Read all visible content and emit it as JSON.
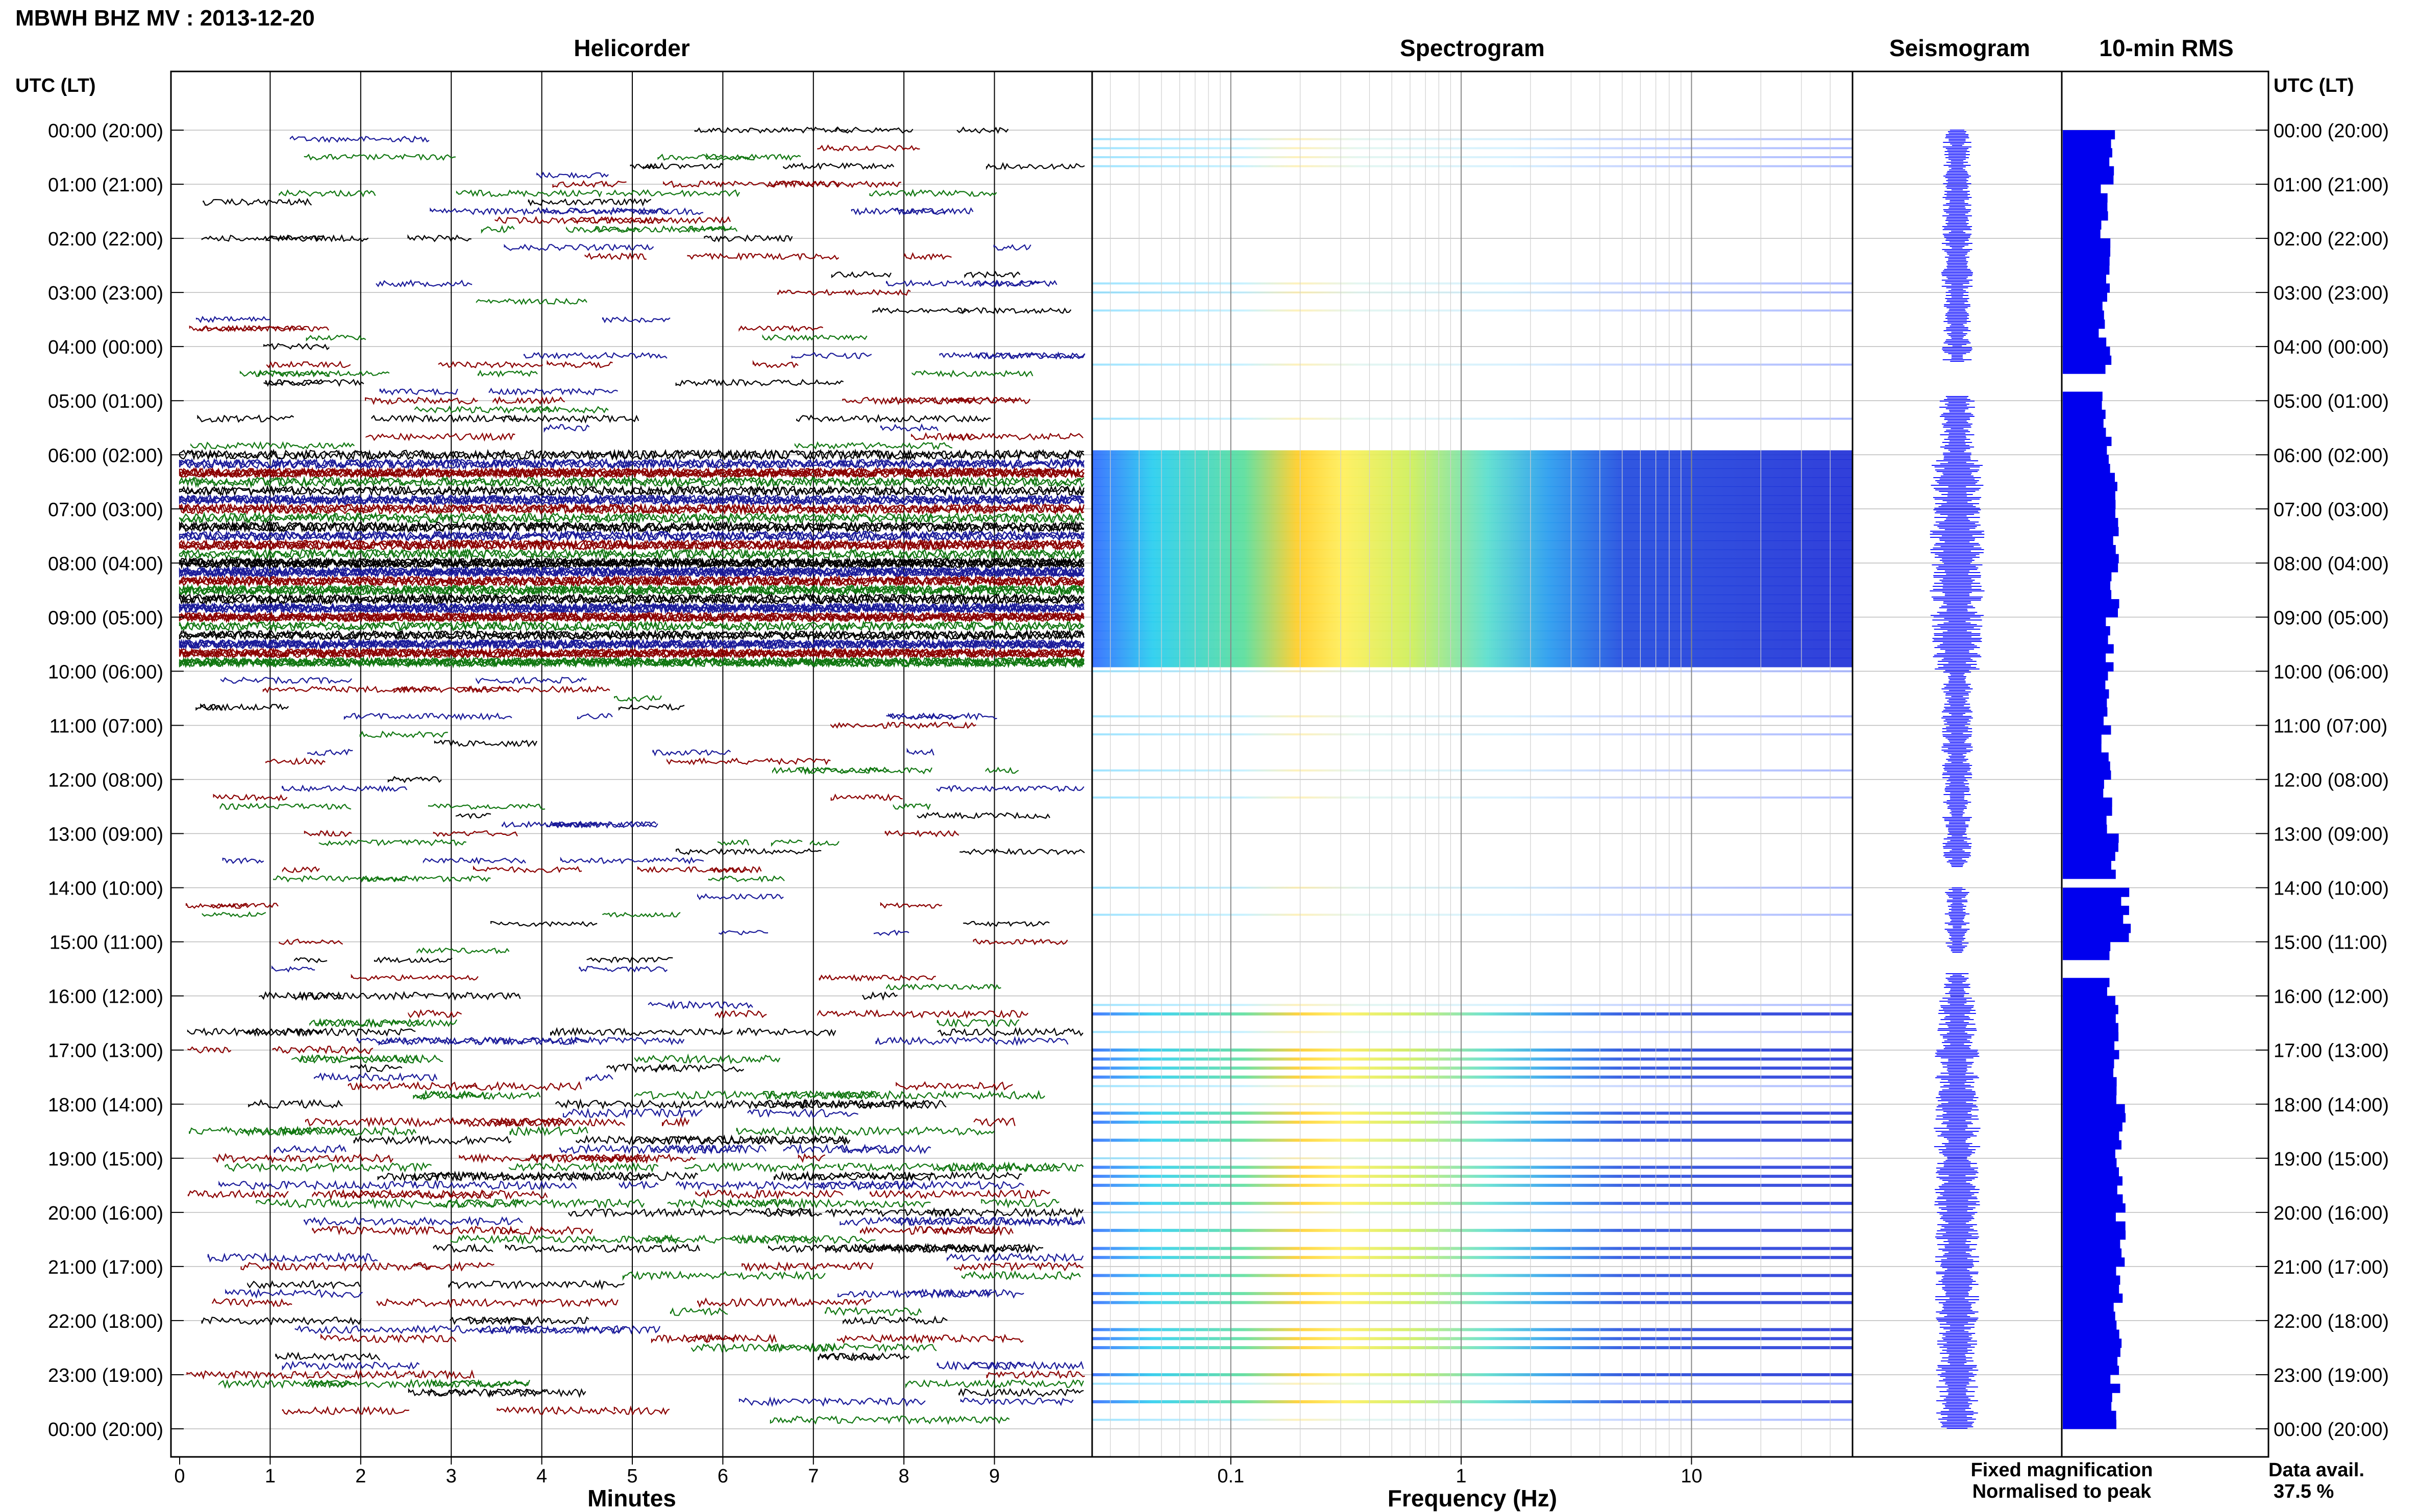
{
  "title": "MBWH BHZ MV : 2013-12-20",
  "panels": {
    "helicorder": "Helicorder",
    "spectrogram": "Spectrogram",
    "seismogram": "Seismogram",
    "rms": "10-min RMS"
  },
  "axis": {
    "time_header": "UTC (LT)",
    "minutes_label": "Minutes",
    "frequency_label": "Frequency (Hz)",
    "minutes_ticks": [
      "0",
      "1",
      "2",
      "3",
      "4",
      "5",
      "6",
      "7",
      "8",
      "9"
    ],
    "frequency_ticks": [
      "0.1",
      "1",
      "10"
    ]
  },
  "hour_labels": [
    "00:00 (20:00)",
    "01:00 (21:00)",
    "02:00 (22:00)",
    "03:00 (23:00)",
    "04:00 (00:00)",
    "05:00 (01:00)",
    "06:00 (02:00)",
    "07:00 (03:00)",
    "08:00 (04:00)",
    "09:00 (05:00)",
    "10:00 (06:00)",
    "11:00 (07:00)",
    "12:00 (08:00)",
    "13:00 (09:00)",
    "14:00 (10:00)",
    "15:00 (11:00)",
    "16:00 (12:00)",
    "17:00 (13:00)",
    "18:00 (14:00)",
    "19:00 (15:00)",
    "20:00 (16:00)",
    "21:00 (17:00)",
    "22:00 (18:00)",
    "23:00 (19:00)",
    "00:00 (20:00)"
  ],
  "legend": {
    "fixed": "Fixed magnification",
    "normalised": "Normalised to peak",
    "fixed_color": "#1a1aff",
    "normalised_color": "#ff1a1a"
  },
  "data_avail": {
    "label": "Data avail.",
    "value": "37.5 %"
  },
  "colors": {
    "trace_colors": [
      "#000000",
      "#1a1a99",
      "#8b0000",
      "#117711"
    ],
    "rms_bar": "#0000ee"
  },
  "chart_data": {
    "type": "heatmap",
    "hours_span": 24,
    "helicorder": {
      "minutes_per_line": 10,
      "xlim": [
        0,
        10
      ]
    },
    "spectrogram": {
      "xscale": "log",
      "xlim": [
        0.025,
        50
      ]
    },
    "rms": {
      "interval_minutes": 10,
      "intensity_by_hour": [
        0.55,
        0.48,
        0.55,
        0.45,
        0.5,
        0.5,
        0.58,
        0.62,
        0.6,
        0.55,
        0.5,
        0.5,
        0.52,
        0.6,
        0.72,
        0.55,
        0.58,
        0.62,
        0.66,
        0.66,
        0.66,
        0.64,
        0.62,
        0.6
      ],
      "gaps_hours": [
        4.6,
        13.8,
        15.4
      ]
    },
    "activity_by_hour": [
      0.4,
      0.5,
      0.45,
      0.35,
      0.45,
      0.55,
      0.95,
      1,
      1,
      0.9,
      0.45,
      0.45,
      0.4,
      0.4,
      0.3,
      0.35,
      0.65,
      0.75,
      0.8,
      0.8,
      0.75,
      0.75,
      0.7,
      0.7
    ]
  }
}
